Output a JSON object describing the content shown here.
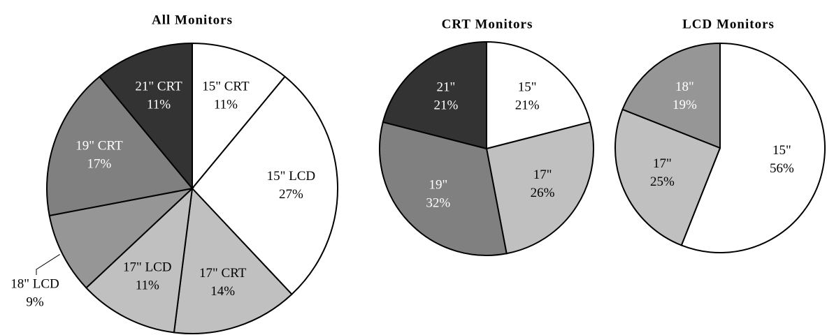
{
  "chart_data": [
    {
      "type": "pie",
      "title": "All Monitors",
      "categories": [
        "15\" CRT",
        "15\" LCD",
        "17\" CRT",
        "17\" LCD",
        "18\" LCD",
        "19\" CRT",
        "21\" CRT"
      ],
      "values": [
        11,
        27,
        14,
        11,
        9,
        17,
        11
      ],
      "value_labels": [
        "11%",
        "27%",
        "14%",
        "11%",
        "9%",
        "17%",
        "11%"
      ],
      "colors": [
        "#ffffff",
        "#ffffff",
        "#c0c0c0",
        "#c0c0c0",
        "#969696",
        "#808080",
        "#333333"
      ]
    },
    {
      "type": "pie",
      "title": "CRT Monitors",
      "categories": [
        "15\"",
        "17\"",
        "19\"",
        "21\""
      ],
      "values": [
        21,
        26,
        32,
        21
      ],
      "value_labels": [
        "21%",
        "26%",
        "32%",
        "21%"
      ],
      "colors": [
        "#ffffff",
        "#c0c0c0",
        "#808080",
        "#333333"
      ]
    },
    {
      "type": "pie",
      "title": "LCD Monitors",
      "categories": [
        "15\"",
        "17\"",
        "18\""
      ],
      "values": [
        56,
        25,
        19
      ],
      "value_labels": [
        "56%",
        "25%",
        "19%"
      ],
      "colors": [
        "#ffffff",
        "#c0c0c0",
        "#969696"
      ]
    }
  ]
}
